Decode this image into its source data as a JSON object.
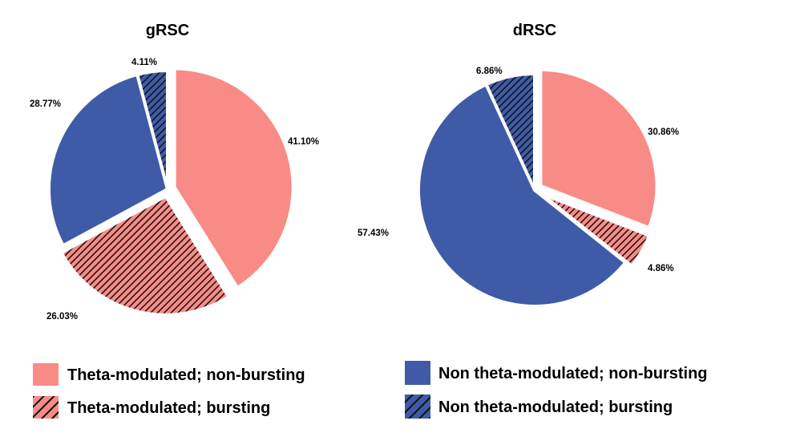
{
  "chart_data": [
    {
      "type": "pie",
      "title": "gRSC",
      "slices": [
        {
          "label": "Theta-modulated; non-bursting",
          "value": 41.1,
          "label_text": "41.10%",
          "exploded": true
        },
        {
          "label": "Theta-modulated; bursting",
          "value": 26.03,
          "label_text": "26.03%",
          "exploded": true
        },
        {
          "label": "Non theta-modulated; non-bursting",
          "value": 28.77,
          "label_text": "28.77%",
          "exploded": false
        },
        {
          "label": "Non theta-modulated; bursting",
          "value": 4.11,
          "label_text": "4.11%",
          "exploded": false
        }
      ]
    },
    {
      "type": "pie",
      "title": "dRSC",
      "slices": [
        {
          "label": "Theta-modulated; non-bursting",
          "value": 30.86,
          "label_text": "30.86%",
          "exploded": true
        },
        {
          "label": "Theta-modulated; bursting",
          "value": 4.86,
          "label_text": "4.86%",
          "exploded": true
        },
        {
          "label": "Non theta-modulated; non-bursting",
          "value": 57.43,
          "label_text": "57.43%",
          "exploded": false
        },
        {
          "label": "Non theta-modulated; bursting",
          "value": 6.86,
          "label_text": "6.86%",
          "exploded": false
        }
      ]
    }
  ],
  "legend": {
    "placement": "bottom",
    "items": [
      {
        "label": "Theta-modulated; non-bursting",
        "color": "#f98b87",
        "hatched": false
      },
      {
        "label": "Theta-modulated; bursting",
        "color": "#f98b87",
        "hatched": true
      },
      {
        "label": "Non theta-modulated; non-bursting",
        "color": "#3f5ba8",
        "hatched": false
      },
      {
        "label": "Non theta-modulated; bursting",
        "color": "#3f5ba8",
        "hatched": true
      }
    ]
  },
  "colors": {
    "theta": "#f98b87",
    "non_theta": "#3f5ba8",
    "hatch_line": "#111111"
  }
}
